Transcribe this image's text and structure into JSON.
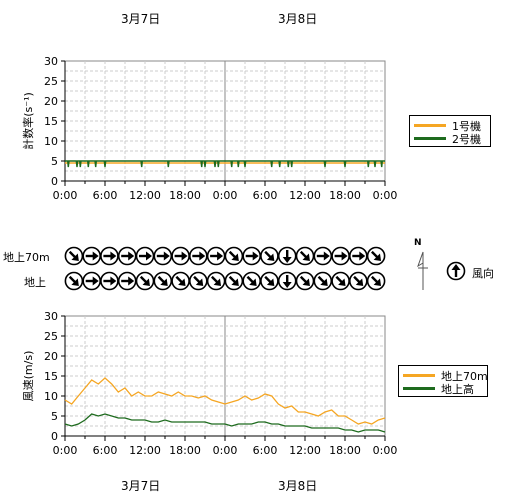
{
  "dates": {
    "top": [
      "3月7日",
      "3月8日"
    ],
    "bottom": [
      "3月7日",
      "3月8日"
    ]
  },
  "time_ticks": [
    "0:00",
    "6:00",
    "12:00",
    "18:00",
    "0:00",
    "6:00",
    "12:00",
    "18:00",
    "0:00"
  ],
  "compass": {
    "north_label": "N"
  },
  "direction_legend": {
    "label": "風向"
  },
  "direction_rows": {
    "upper_label": "地上70m",
    "lower_label": "地上",
    "upper_angles_deg": [
      135,
      90,
      90,
      90,
      90,
      90,
      90,
      90,
      90,
      135,
      90,
      135,
      180,
      135,
      90,
      90,
      90,
      135
    ],
    "lower_angles_deg": [
      135,
      90,
      90,
      90,
      135,
      135,
      135,
      135,
      135,
      135,
      135,
      135,
      180,
      135,
      135,
      135,
      135,
      135
    ]
  },
  "chart_data": [
    {
      "type": "line",
      "ylabel": "計数率(s⁻¹)",
      "ylim": [
        0,
        30
      ],
      "yticks": [
        0,
        5,
        10,
        15,
        20,
        25,
        30
      ],
      "x_unit": "hours from 3月7日 0:00",
      "xlim": [
        0,
        48
      ],
      "grid": true,
      "legend_position": "right",
      "series": [
        {
          "name": "1号機",
          "color": "#f5a623",
          "x": [
            0,
            48
          ],
          "y": [
            4.5,
            4.5
          ]
        },
        {
          "name": "2号機",
          "color": "#1e6b1e",
          "base": 5.0,
          "dips": [
            0.5,
            1.8,
            2.3,
            3.5,
            4.6,
            6.0,
            11.5,
            15.5,
            20.5,
            21.0,
            22.5,
            23.0,
            25.0,
            26.0,
            27.0,
            31.0,
            32.2,
            33.5,
            34.0,
            39.0,
            42.0,
            45.5,
            46.5,
            47.5
          ],
          "dip_value": 3.5
        }
      ]
    },
    {
      "type": "line",
      "ylabel": "風速(m/s)",
      "ylim": [
        0,
        30
      ],
      "yticks": [
        0,
        5,
        10,
        15,
        20,
        25,
        30
      ],
      "x_unit": "hours from 3月7日 0:00",
      "xlim": [
        0,
        48
      ],
      "grid": true,
      "legend_position": "right",
      "series": [
        {
          "name": "地上70m",
          "color": "#f5a623",
          "x": [
            0,
            1,
            2,
            3,
            4,
            5,
            6,
            7,
            8,
            9,
            10,
            11,
            12,
            13,
            14,
            15,
            16,
            17,
            18,
            19,
            20,
            21,
            22,
            23,
            24,
            25,
            26,
            27,
            28,
            29,
            30,
            31,
            32,
            33,
            34,
            35,
            36,
            37,
            38,
            39,
            40,
            41,
            42,
            43,
            44,
            45,
            46,
            47,
            48
          ],
          "y": [
            9,
            8,
            10,
            12,
            14,
            13,
            14.5,
            13,
            11,
            12,
            10,
            11,
            10,
            10,
            11,
            10.5,
            10,
            11,
            10,
            10,
            9.5,
            10,
            9,
            8.5,
            8,
            8.5,
            9,
            10,
            9,
            9.5,
            10.5,
            10,
            8,
            7,
            7.5,
            6,
            6,
            5.5,
            5,
            6,
            6.5,
            5,
            5,
            4,
            3,
            3.5,
            3,
            4,
            4.5
          ]
        },
        {
          "name": "地上高",
          "color": "#1e6b1e",
          "x": [
            0,
            1,
            2,
            3,
            4,
            5,
            6,
            7,
            8,
            9,
            10,
            11,
            12,
            13,
            14,
            15,
            16,
            17,
            18,
            19,
            20,
            21,
            22,
            23,
            24,
            25,
            26,
            27,
            28,
            29,
            30,
            31,
            32,
            33,
            34,
            35,
            36,
            37,
            38,
            39,
            40,
            41,
            42,
            43,
            44,
            45,
            46,
            47,
            48
          ],
          "y": [
            3,
            2.5,
            3,
            4,
            5.5,
            5,
            5.5,
            5,
            4.5,
            4.5,
            4,
            4,
            4,
            3.5,
            3.5,
            4,
            3.5,
            3.5,
            3.5,
            3.5,
            3.5,
            3.5,
            3,
            3,
            3,
            2.5,
            3,
            3,
            3,
            3.5,
            3.5,
            3,
            3,
            2.5,
            2.5,
            2.5,
            2.5,
            2,
            2,
            2,
            2,
            2,
            1.5,
            1.5,
            1,
            1.5,
            1.5,
            1.5,
            1
          ]
        }
      ]
    }
  ]
}
